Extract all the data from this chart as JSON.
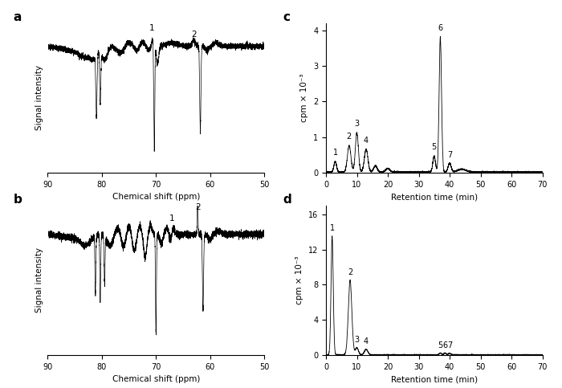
{
  "panel_labels": [
    "a",
    "b",
    "c",
    "d"
  ],
  "nmr_xlabel": "Chemical shift (ppm)",
  "nmr_ylabel": "Signal intensity",
  "hplc_xlabel": "Retention time (min)",
  "hplc_ylabel_c": "cpm × 10⁻³",
  "hplc_ylabel_d": "cpm × 10⁻³",
  "bg_color": "#ffffff",
  "line_color": "#000000"
}
